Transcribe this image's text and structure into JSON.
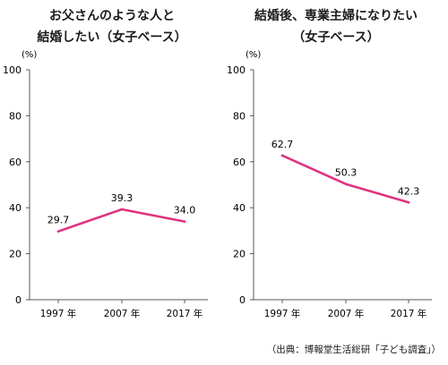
{
  "chart_data": [
    {
      "type": "line",
      "title_lines": [
        "お父さんのような人と",
        "結婚したい（女子ベース）"
      ],
      "unit": "(%)",
      "categories": [
        "1997 年",
        "2007 年",
        "2017 年"
      ],
      "values": [
        29.7,
        39.3,
        34.0
      ],
      "value_labels": [
        "29.7",
        "39.3",
        "34.0"
      ],
      "y_ticks": [
        "0",
        "20",
        "40",
        "60",
        "80",
        "100"
      ],
      "ylim": [
        0,
        100
      ],
      "line_color": "#e0337f",
      "grid": false
    },
    {
      "type": "line",
      "title_lines": [
        "結婚後、専業主婦になりたい",
        "（女子ベース）"
      ],
      "unit": "(%)",
      "categories": [
        "1997 年",
        "2007 年",
        "2017 年"
      ],
      "values": [
        62.7,
        50.3,
        42.3
      ],
      "value_labels": [
        "62.7",
        "50.3",
        "42.3"
      ],
      "y_ticks": [
        "0",
        "20",
        "40",
        "60",
        "80",
        "100"
      ],
      "ylim": [
        0,
        100
      ],
      "line_color": "#e0337f",
      "grid": false
    }
  ],
  "source": "（出典：博報堂生活総研「子ども調査」）"
}
